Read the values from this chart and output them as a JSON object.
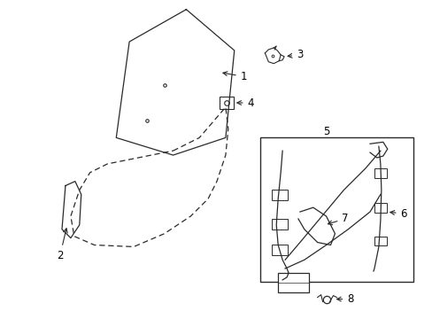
{
  "bg_color": "#ffffff",
  "line_color": "#2a2a2a",
  "lw": 0.9
}
